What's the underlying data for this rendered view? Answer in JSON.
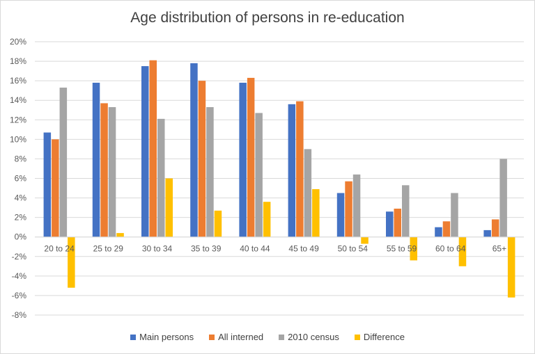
{
  "chart_data": {
    "type": "bar",
    "title": "Age distribution of persons in re-education",
    "xlabel": "",
    "ylabel": "",
    "ylim": [
      -8,
      20
    ],
    "ytick_step": 2,
    "tick_suffix": "%",
    "grid": true,
    "legend_position": "bottom",
    "categories": [
      "20 to 24",
      "25 to 29",
      "30 to 34",
      "35 to 39",
      "40 to 44",
      "45 to 49",
      "50 to 54",
      "55 to 59",
      "60 to 64",
      "65+"
    ],
    "series": [
      {
        "name": "Main persons",
        "color": "#4472c4",
        "values": [
          10.7,
          15.8,
          17.5,
          17.8,
          15.8,
          13.6,
          4.5,
          2.6,
          1.0,
          0.7
        ]
      },
      {
        "name": "All interned",
        "color": "#ed7d31",
        "values": [
          10.0,
          13.7,
          18.1,
          16.0,
          16.3,
          13.9,
          5.7,
          2.9,
          1.6,
          1.8
        ]
      },
      {
        "name": "2010 census",
        "color": "#a5a5a5",
        "values": [
          15.3,
          13.3,
          12.1,
          13.3,
          12.7,
          9.0,
          6.4,
          5.3,
          4.5,
          8.0
        ]
      },
      {
        "name": "Difference",
        "color": "#ffc000",
        "values": [
          -5.2,
          0.4,
          6.0,
          2.7,
          3.6,
          4.9,
          -0.7,
          -2.4,
          -3.0,
          -6.2
        ]
      }
    ]
  }
}
